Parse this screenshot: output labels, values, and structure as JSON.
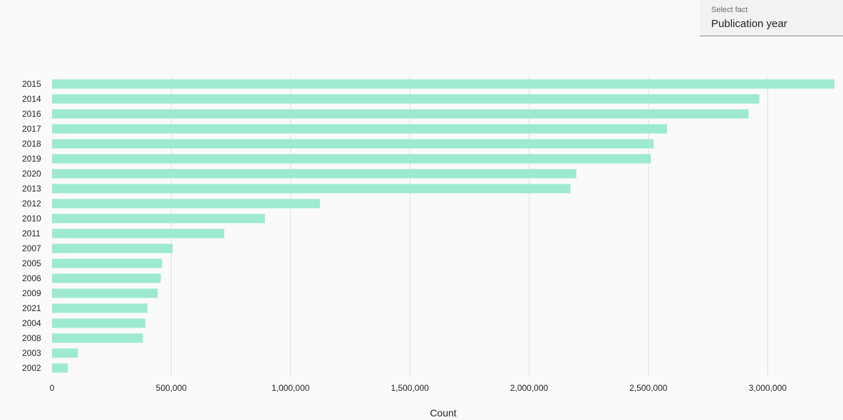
{
  "selector": {
    "label": "Select fact",
    "value": "Publication year"
  },
  "colors": {
    "bar": "#9deacf",
    "grid": "#dedede",
    "text": "#222222"
  },
  "chart_data": {
    "type": "bar",
    "orientation": "horizontal",
    "title": "",
    "xlabel": "Count",
    "ylabel": "",
    "xlim": [
      0,
      3280000
    ],
    "x_ticks": [
      0,
      500000,
      1000000,
      1500000,
      2000000,
      2500000,
      3000000
    ],
    "x_tick_labels": [
      "0",
      "500,000",
      "1,000,000",
      "1,500,000",
      "2,000,000",
      "2,500,000",
      "3,000,000"
    ],
    "grid": true,
    "categories": [
      "2015",
      "2014",
      "2016",
      "2017",
      "2018",
      "2019",
      "2020",
      "2013",
      "2012",
      "2010",
      "2011",
      "2007",
      "2005",
      "2006",
      "2009",
      "2021",
      "2004",
      "2008",
      "2003",
      "2002"
    ],
    "values": [
      3280000,
      2965000,
      2920000,
      2578000,
      2522000,
      2510000,
      2198000,
      2173000,
      1123000,
      893000,
      722000,
      506000,
      462000,
      456000,
      443000,
      400000,
      391000,
      381000,
      108000,
      66000
    ]
  }
}
